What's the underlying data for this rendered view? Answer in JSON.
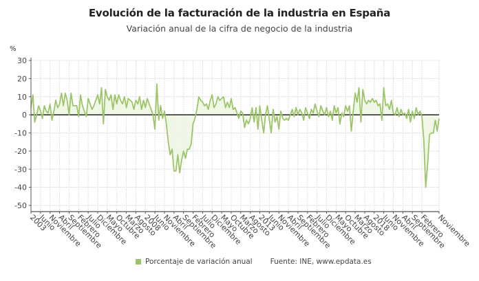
{
  "chart_data": {
    "type": "line",
    "title": "Evolución de la facturación de la industria en España",
    "subtitle": "Variación anual de la cifra de negocio de la industria",
    "ylabel": "%",
    "xlabel": "",
    "ylim": [
      -50,
      30
    ],
    "yticks": [
      30,
      20,
      10,
      0,
      -10,
      -20,
      -30,
      -40,
      -50
    ],
    "grid": true,
    "start": "2003-01",
    "end": "2020-11",
    "x_tick_labels": [
      "2003",
      "Junio",
      "Noviembre",
      "Abril",
      "Septiembre",
      "Febrero",
      "Julio",
      "Diciembre",
      "Mayo",
      "Octubre",
      "Marzo",
      "Agosto",
      "2008",
      "Junio",
      "Noviembre",
      "Abril",
      "Septiembre",
      "Febrero",
      "Julio",
      "Diciembre",
      "Mayo",
      "Octubre",
      "Marzo",
      "Agosto",
      "2013",
      "Junio",
      "Noviembre",
      "Abril",
      "Septiembre",
      "Febrero",
      "Julio",
      "Diciembre",
      "Mayo",
      "Octubre",
      "Marzo",
      "Agosto",
      "2018",
      "Junio",
      "Noviembre",
      "Abril",
      "Septiembre",
      "Febrero",
      "Noviembre"
    ],
    "x_tick_months": [
      0,
      5,
      10,
      15,
      20,
      25,
      30,
      35,
      40,
      45,
      50,
      55,
      60,
      65,
      70,
      75,
      80,
      85,
      90,
      95,
      100,
      105,
      110,
      115,
      120,
      125,
      130,
      135,
      140,
      145,
      150,
      155,
      160,
      165,
      170,
      175,
      180,
      185,
      190,
      195,
      200,
      205,
      214
    ],
    "legend": "bottom",
    "series": [
      {
        "name": "Porcentaje de variación anual",
        "color": "#9cc56a",
        "fill": "#eef6e4",
        "values": [
          4,
          11,
          -4,
          0,
          5,
          2,
          -2,
          5,
          2,
          1,
          6,
          -3,
          2,
          8,
          4,
          6,
          12,
          5,
          12,
          8,
          0,
          12,
          5,
          5,
          5,
          -1,
          11,
          5,
          2,
          -1,
          9,
          6,
          3,
          5,
          8,
          11,
          6,
          15,
          -5,
          14,
          10,
          8,
          11,
          3,
          11,
          6,
          11,
          8,
          6,
          10,
          4,
          9,
          8,
          7,
          3,
          8,
          6,
          10,
          3,
          8,
          4,
          9,
          6,
          3,
          0,
          -8,
          17,
          -3,
          5,
          -2,
          2,
          -5,
          -15,
          -22,
          -19,
          -31,
          -31,
          -22,
          -32,
          -25,
          -20,
          -24,
          -19,
          -19,
          -16,
          -5,
          -2,
          3,
          10,
          8,
          7,
          5,
          6,
          3,
          8,
          11,
          4,
          6,
          10,
          8,
          9,
          10,
          4,
          7,
          4,
          9,
          3,
          4,
          1,
          -2,
          2,
          1,
          -7,
          -3,
          -5,
          -2,
          4,
          -4,
          4,
          -8,
          5,
          -3,
          -10,
          0,
          5,
          -3,
          -10,
          3,
          -4,
          -1,
          -8,
          2,
          -2,
          -3,
          -2,
          -3,
          0,
          3,
          -1,
          4,
          0,
          3,
          1,
          -3,
          4,
          1,
          -2,
          3,
          1,
          6,
          2,
          -1,
          5,
          2,
          0,
          4,
          -1,
          2,
          -3,
          5,
          1,
          4,
          -5,
          1,
          -1,
          5,
          2,
          5,
          -9,
          2,
          12,
          7,
          15,
          -4,
          14,
          8,
          6,
          8,
          7,
          9,
          7,
          8,
          5,
          6,
          -3,
          15,
          5,
          6,
          3,
          8,
          1,
          0,
          4,
          -1,
          3,
          0,
          1,
          -2,
          3,
          -4,
          2,
          -2,
          4,
          0,
          2,
          -1,
          -14,
          -40,
          -27,
          -11,
          -10,
          -10,
          -3,
          -9,
          -2
        ]
      }
    ]
  },
  "legend": {
    "series_label": "Porcentaje de variación anual",
    "source_label": "Fuente: INE, www.epdata.es"
  }
}
